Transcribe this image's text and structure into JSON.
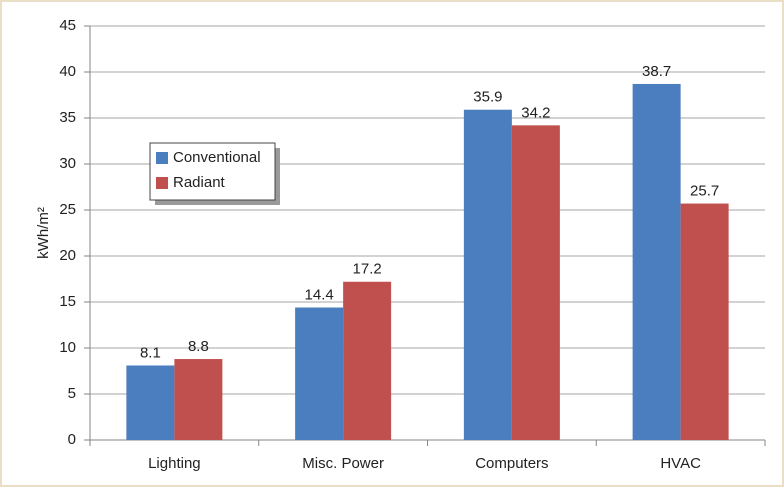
{
  "chart_data": {
    "type": "bar",
    "y_label": "kWh/m²",
    "categories": [
      "Lighting",
      "Misc. Power",
      "Computers",
      "HVAC"
    ],
    "series": [
      {
        "name": "Conventional",
        "color": "#4a7ebf",
        "values": [
          8.1,
          14.4,
          35.9,
          38.7
        ]
      },
      {
        "name": "Radiant",
        "color": "#c0504d",
        "values": [
          8.8,
          17.2,
          34.2,
          25.7
        ]
      }
    ],
    "ylim": [
      0,
      45
    ],
    "yticks": [
      0,
      5,
      10,
      15,
      20,
      25,
      30,
      35,
      40,
      45
    ],
    "grid": true,
    "legend": "upper left"
  }
}
